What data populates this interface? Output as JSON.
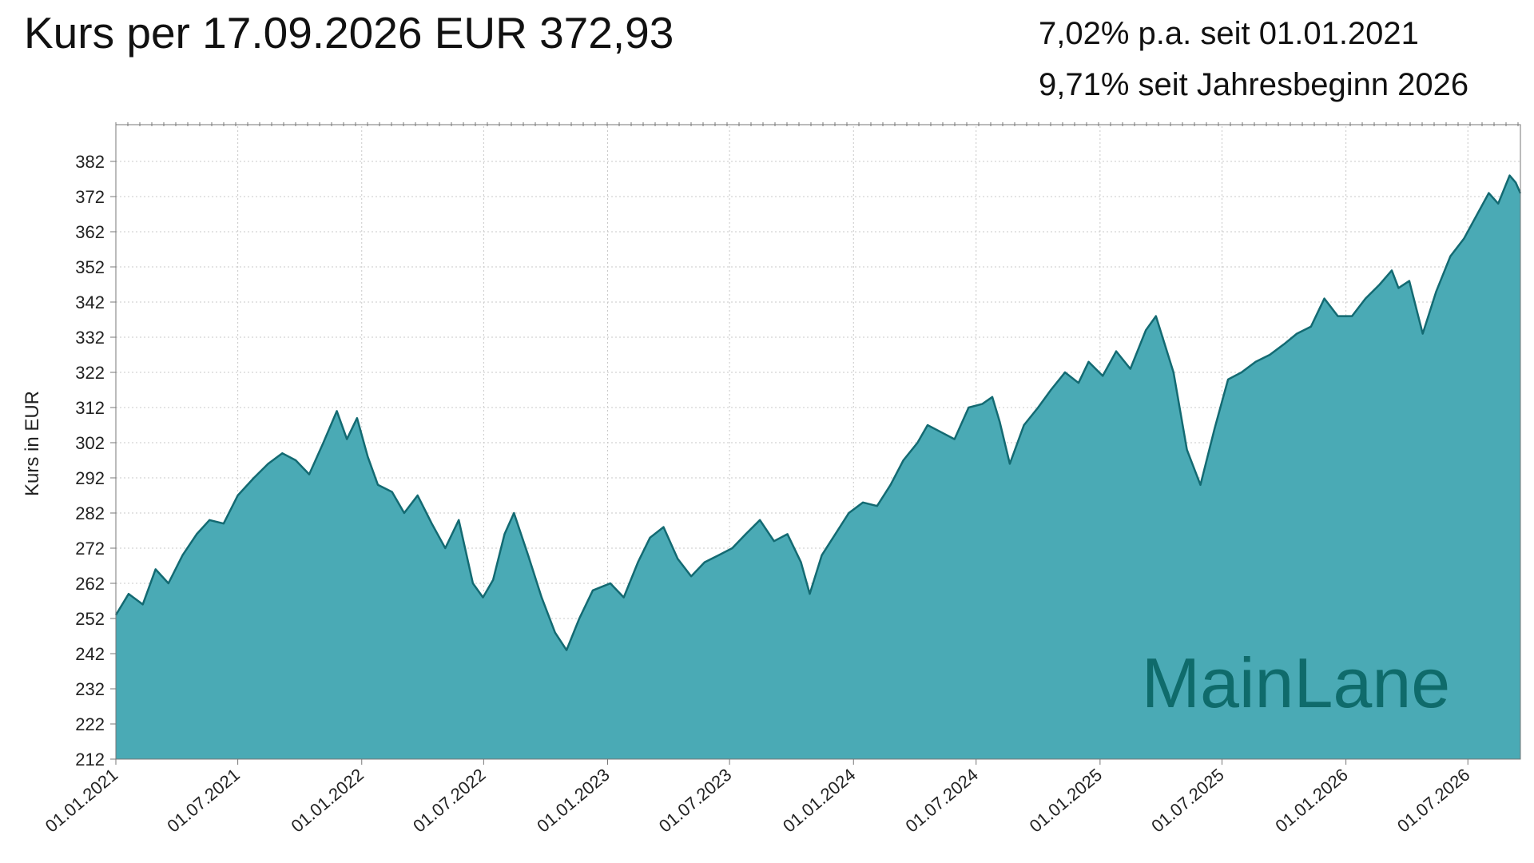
{
  "header": {
    "title": "Kurs per 17.09.2026 EUR 372,93",
    "stat_pa": "7,02% p.a. seit 01.01.2021",
    "stat_ytd": "9,71% seit Jahresbeginn 2026"
  },
  "watermark": "MainLane",
  "colors": {
    "fill": "#4aaab5",
    "line": "#136a72",
    "grid": "#c8c8c8",
    "frame": "#777777",
    "watermark": "#0f6b6b"
  },
  "chart_data": {
    "type": "area",
    "ylabel": "Kurs in EUR",
    "ylim": [
      212,
      392
    ],
    "yticks": [
      212,
      222,
      232,
      242,
      252,
      262,
      272,
      282,
      292,
      302,
      312,
      322,
      332,
      342,
      352,
      362,
      372,
      382
    ],
    "xlim": [
      "2021-01-01",
      "2026-09-17"
    ],
    "xticks": [
      "01.01.2021",
      "01.07.2021",
      "01.01.2022",
      "01.07.2022",
      "01.01.2023",
      "01.07.2023",
      "01.01.2024",
      "01.07.2024",
      "01.01.2025",
      "01.07.2025",
      "01.01.2026",
      "01.07.2026"
    ],
    "grid": true,
    "series": [
      {
        "x": [
          "2021-01-01",
          "2021-01-20",
          "2021-02-10",
          "2021-03-01",
          "2021-03-20",
          "2021-04-10",
          "2021-05-01",
          "2021-05-20",
          "2021-06-10",
          "2021-07-01",
          "2021-07-25",
          "2021-08-15",
          "2021-09-05",
          "2021-09-25",
          "2021-10-15",
          "2021-11-05",
          "2021-11-25",
          "2021-12-10",
          "2021-12-25",
          "2022-01-10",
          "2022-01-25",
          "2022-02-15",
          "2022-03-05",
          "2022-03-25",
          "2022-04-15",
          "2022-05-05",
          "2022-05-25",
          "2022-06-15",
          "2022-06-30",
          "2022-07-15",
          "2022-08-01",
          "2022-08-15",
          "2022-09-05",
          "2022-09-25",
          "2022-10-15",
          "2022-11-01",
          "2022-11-20",
          "2022-12-10",
          "2023-01-05",
          "2023-01-25",
          "2023-02-15",
          "2023-03-05",
          "2023-03-25",
          "2023-04-15",
          "2023-05-05",
          "2023-05-25",
          "2023-06-15",
          "2023-07-05",
          "2023-07-25",
          "2023-08-15",
          "2023-09-05",
          "2023-09-25",
          "2023-10-15",
          "2023-10-28",
          "2023-11-15",
          "2023-12-05",
          "2023-12-25",
          "2024-01-15",
          "2024-02-05",
          "2024-02-25",
          "2024-03-15",
          "2024-04-05",
          "2024-04-20",
          "2024-05-10",
          "2024-05-30",
          "2024-06-20",
          "2024-07-10",
          "2024-07-25",
          "2024-08-05",
          "2024-08-20",
          "2024-09-10",
          "2024-10-01",
          "2024-10-20",
          "2024-11-10",
          "2024-11-30",
          "2024-12-15",
          "2025-01-05",
          "2025-01-25",
          "2025-02-15",
          "2025-03-10",
          "2025-03-25",
          "2025-04-07",
          "2025-04-20",
          "2025-05-10",
          "2025-05-30",
          "2025-06-20",
          "2025-07-10",
          "2025-07-30",
          "2025-08-20",
          "2025-09-10",
          "2025-10-01",
          "2025-10-20",
          "2025-11-10",
          "2025-11-30",
          "2025-12-20",
          "2026-01-10",
          "2026-01-30",
          "2026-02-20",
          "2026-03-10",
          "2026-03-20",
          "2026-04-05",
          "2026-04-25",
          "2026-05-15",
          "2026-06-05",
          "2026-06-25",
          "2026-07-15",
          "2026-08-01",
          "2026-08-15",
          "2026-09-01",
          "2026-09-10",
          "2026-09-17"
        ],
        "y": [
          253,
          259,
          256,
          266,
          262,
          270,
          276,
          280,
          279,
          287,
          292,
          296,
          299,
          297,
          293,
          302,
          311,
          303,
          309,
          298,
          290,
          288,
          282,
          287,
          279,
          272,
          280,
          262,
          258,
          263,
          276,
          282,
          270,
          258,
          248,
          243,
          252,
          260,
          262,
          258,
          268,
          275,
          278,
          269,
          264,
          268,
          270,
          272,
          276,
          280,
          274,
          276,
          268,
          259,
          270,
          276,
          282,
          285,
          284,
          290,
          297,
          302,
          307,
          305,
          303,
          312,
          313,
          315,
          308,
          296,
          307,
          312,
          317,
          322,
          319,
          325,
          321,
          328,
          323,
          334,
          338,
          330,
          322,
          300,
          290,
          306,
          320,
          322,
          325,
          327,
          330,
          333,
          335,
          343,
          338,
          338,
          343,
          347,
          351,
          346,
          348,
          333,
          345,
          355,
          360,
          367,
          373,
          370,
          378,
          376,
          372.93
        ]
      }
    ]
  }
}
